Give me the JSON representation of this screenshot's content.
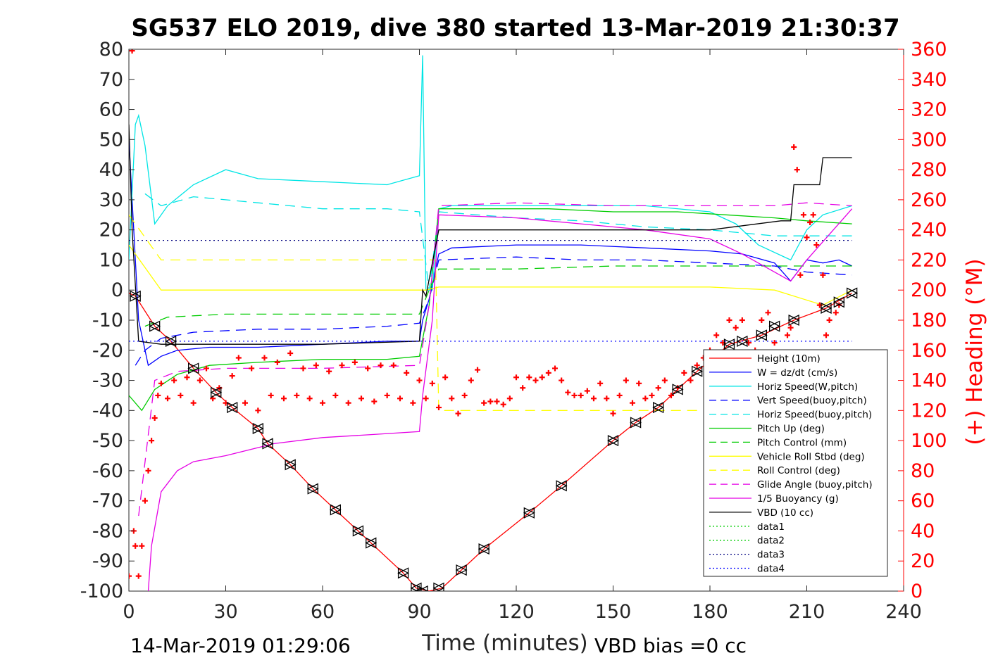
{
  "chart_data": {
    "type": "line",
    "title": "SG537 ELO 2019, dive 380 started 13-Mar-2019 21:30:37",
    "xlabel": "Time (minutes)",
    "ylabel_right": "(+) Heading (°M)",
    "footer_left": "14-Mar-2019 01:29:06",
    "footer_right": "VBD bias =0 cc",
    "xlim": [
      0,
      240
    ],
    "ylim": [
      -100,
      80
    ],
    "ylim_right": [
      0,
      360
    ],
    "x_ticks": [
      "0",
      "30",
      "60",
      "90",
      "120",
      "150",
      "180",
      "210",
      "240"
    ],
    "y_ticks": [
      "80",
      "70",
      "60",
      "50",
      "40",
      "30",
      "20",
      "10",
      "0",
      "-10",
      "-20",
      "-30",
      "-40",
      "-50",
      "-60",
      "-70",
      "-80",
      "-90",
      "-100"
    ],
    "y_ticks_right": [
      "360",
      "340",
      "320",
      "300",
      "280",
      "260",
      "240",
      "220",
      "200",
      "180",
      "160",
      "140",
      "120",
      "100",
      "80",
      "60",
      "40",
      "20",
      "0"
    ],
    "legend_position": "bottom-right",
    "legend": [
      {
        "label": "Height (10m)",
        "color": "#ff0000",
        "dash": "solid"
      },
      {
        "label": "W = dz/dt (cm/s)",
        "color": "#0000ff",
        "dash": "solid"
      },
      {
        "label": "Horiz Speed(W,pitch)",
        "color": "#00e5e5",
        "dash": "solid"
      },
      {
        "label": "Vert Speed(buoy,pitch)",
        "color": "#0000ff",
        "dash": "dashed"
      },
      {
        "label": "Horiz Speed(buoy,pitch)",
        "color": "#00e5e5",
        "dash": "dashed"
      },
      {
        "label": "Pitch Up (deg)",
        "color": "#00cc00",
        "dash": "solid"
      },
      {
        "label": "Pitch Control (mm)",
        "color": "#00cc00",
        "dash": "dashed"
      },
      {
        "label": "Vehicle Roll Stbd (deg)",
        "color": "#ffff00",
        "dash": "solid"
      },
      {
        "label": "Roll Control (deg)",
        "color": "#ffff00",
        "dash": "dashed"
      },
      {
        "label": "Glide Angle (buoy,pitch)",
        "color": "#e500e5",
        "dash": "dashed"
      },
      {
        "label": "1/5 Buoyancy (g)",
        "color": "#e500e5",
        "dash": "solid"
      },
      {
        "label": "VBD (10 cc)",
        "color": "#000000",
        "dash": "solid"
      },
      {
        "label": "data1",
        "color": "#00cc00",
        "dash": "dotted"
      },
      {
        "label": "data2",
        "color": "#00cc00",
        "dash": "dotted"
      },
      {
        "label": "data3",
        "color": "#000080",
        "dash": "dotted"
      },
      {
        "label": "data4",
        "color": "#0000ff",
        "dash": "dotted"
      }
    ],
    "series": [
      {
        "name": "Height (10m)",
        "color": "#ff0000",
        "dash": "solid",
        "x": [
          0,
          2,
          8,
          13,
          20,
          27,
          32,
          40,
          43,
          50,
          57,
          64,
          71,
          75,
          85,
          89,
          93,
          97,
          103,
          110,
          124,
          134,
          150,
          157,
          164,
          170,
          176,
          186,
          196,
          206,
          216,
          224
        ],
        "y": [
          -1,
          -2,
          -12,
          -17,
          -26,
          -34,
          -39,
          -46,
          -51,
          -58,
          -66,
          -73,
          -80,
          -84,
          -94,
          -99,
          -100,
          -99,
          -93,
          -86,
          -74,
          -65,
          -50,
          -44,
          -39,
          -33,
          -27,
          -18,
          -15,
          -10,
          -6,
          -1
        ]
      },
      {
        "name": "W = dz/dt (cm/s)",
        "color": "#0000ff",
        "dash": "solid",
        "x": [
          0,
          3,
          6,
          10,
          15,
          25,
          40,
          60,
          80,
          90,
          91,
          93,
          96,
          100,
          120,
          140,
          160,
          180,
          190,
          200,
          205,
          210,
          215,
          220,
          224
        ],
        "y": [
          50,
          -10,
          -25,
          -22,
          -20,
          -19,
          -19,
          -18,
          -17,
          -17,
          -10,
          -3,
          12,
          14,
          15,
          15,
          14,
          13,
          12,
          9,
          3,
          10,
          9,
          10,
          8
        ]
      },
      {
        "name": "Horiz Speed(W,pitch)",
        "color": "#00e5e5",
        "dash": "solid",
        "x": [
          0,
          2,
          3,
          5,
          8,
          12,
          20,
          30,
          40,
          60,
          80,
          90,
          91,
          92,
          94,
          96,
          100,
          120,
          140,
          160,
          180,
          188,
          195,
          205,
          210,
          215,
          224
        ],
        "y": [
          10,
          55,
          58,
          48,
          22,
          28,
          35,
          40,
          37,
          36,
          35,
          38,
          78,
          0,
          0,
          27,
          28,
          28,
          28,
          28,
          26,
          22,
          15,
          10,
          20,
          25,
          28
        ]
      },
      {
        "name": "Vert Speed(buoy,pitch)",
        "color": "#0000ff",
        "dash": "dashed",
        "x": [
          2,
          5,
          10,
          20,
          40,
          60,
          80,
          90,
          93,
          96,
          120,
          140,
          160,
          180,
          200,
          210,
          224
        ],
        "y": [
          -25,
          -20,
          -16,
          -14,
          -13,
          -13,
          -12,
          -11,
          -3,
          10,
          11,
          10,
          10,
          9,
          8,
          6,
          5
        ]
      },
      {
        "name": "Horiz Speed(buoy,pitch)",
        "color": "#00e5e5",
        "dash": "dashed",
        "x": [
          5,
          10,
          20,
          40,
          60,
          80,
          90,
          93,
          96,
          120,
          140,
          160,
          180,
          200,
          210,
          224
        ],
        "y": [
          32,
          28,
          31,
          29,
          27,
          27,
          26,
          0,
          26,
          24,
          23,
          21,
          20,
          18,
          18,
          18
        ]
      },
      {
        "name": "Pitch Up (deg)",
        "color": "#00cc00",
        "dash": "solid",
        "x": [
          0,
          4,
          8,
          15,
          25,
          40,
          60,
          80,
          90,
          93,
          96,
          110,
          130,
          150,
          170,
          185,
          200,
          210,
          224
        ],
        "y": [
          -35,
          -40,
          -33,
          -28,
          -25,
          -24,
          -23,
          -23,
          -22,
          -5,
          27,
          27,
          27,
          26,
          26,
          25,
          24,
          23,
          22
        ]
      },
      {
        "name": "Pitch Control (mm)",
        "color": "#00cc00",
        "dash": "dashed",
        "x": [
          5,
          12,
          30,
          60,
          90,
          93,
          96,
          120,
          150,
          180,
          210,
          224
        ],
        "y": [
          -12,
          -9,
          -8,
          -8,
          -8,
          0,
          7,
          7,
          8,
          8,
          8,
          8
        ]
      },
      {
        "name": "Vehicle Roll Stbd (deg)",
        "color": "#ffff00",
        "dash": "solid",
        "x": [
          0,
          10,
          30,
          60,
          89,
          92,
          96,
          120,
          150,
          180,
          200,
          215,
          224
        ],
        "y": [
          15,
          0,
          0,
          0,
          0,
          0,
          1,
          1,
          1,
          1,
          0,
          -5,
          0
        ]
      },
      {
        "name": "Roll Control (deg)",
        "color": "#ffff00",
        "dash": "dashed",
        "x": [
          0,
          10,
          60,
          90,
          95,
          96,
          120,
          150,
          180,
          200,
          224
        ],
        "y": [
          25,
          10,
          10,
          10,
          10,
          -40,
          -40,
          -40,
          -40,
          -40,
          -40
        ]
      },
      {
        "name": "Glide Angle (buoy,pitch)",
        "color": "#e500e5",
        "dash": "dashed",
        "x": [
          3,
          8,
          15,
          30,
          60,
          90,
          93,
          96,
          120,
          150,
          180,
          200,
          210,
          224
        ],
        "y": [
          -75,
          -30,
          -27,
          -26,
          -26,
          -25,
          -5,
          28,
          29,
          28,
          28,
          28,
          29,
          28
        ]
      },
      {
        "name": "1/5 Buoyancy (g)",
        "color": "#e500e5",
        "dash": "solid",
        "x": [
          6,
          7,
          10,
          15,
          20,
          30,
          45,
          60,
          75,
          90,
          91,
          94,
          96,
          120,
          140,
          160,
          180,
          190,
          200,
          205,
          210,
          224
        ],
        "y": [
          -100,
          -85,
          -67,
          -60,
          -57,
          -55,
          -51,
          -49,
          -48,
          -47,
          -35,
          -10,
          25,
          24,
          22,
          20,
          17,
          12,
          6,
          3,
          10,
          27
        ]
      },
      {
        "name": "VBD (10 cc)",
        "color": "#000000",
        "dash": "solid",
        "x": [
          0,
          1,
          3,
          10,
          30,
          60,
          90,
          91,
          92,
          96,
          120,
          150,
          180,
          202,
          205,
          206,
          214,
          215,
          224
        ],
        "y": [
          55,
          20,
          -17,
          -18,
          -18,
          -18,
          -17,
          0,
          -2,
          20,
          20,
          20,
          20,
          23,
          23,
          35,
          35,
          44,
          44
        ]
      },
      {
        "name": "data3",
        "color": "#000080",
        "dash": "dotted",
        "x": [
          0,
          224
        ],
        "y": [
          16.5,
          16.5
        ]
      },
      {
        "name": "data4",
        "color": "#0000ff",
        "dash": "dotted",
        "x": [
          0,
          224
        ],
        "y": [
          -17,
          -17
        ]
      }
    ],
    "triangle_markers": {
      "x": [
        2,
        8,
        13,
        20,
        27,
        32,
        40,
        43,
        50,
        57,
        64,
        71,
        75,
        85,
        89,
        91,
        96,
        103,
        110,
        124,
        134,
        150,
        157,
        164,
        170,
        176,
        186,
        190,
        196,
        200,
        206,
        216,
        220,
        224
      ],
      "y": [
        -2,
        -12,
        -17,
        -26,
        -34,
        -39,
        -46,
        -51,
        -58,
        -66,
        -73,
        -80,
        -84,
        -94,
        -99,
        -100,
        -99,
        -93,
        -86,
        -74,
        -65,
        -50,
        -44,
        -39,
        -33,
        -27,
        -18,
        -17,
        -15,
        -12,
        -10,
        -6,
        -4,
        -1
      ]
    },
    "heading": {
      "label": "Heading",
      "color": "#ff0000",
      "marker": "+",
      "x": [
        0,
        1,
        1.5,
        2,
        3,
        4,
        5,
        6,
        7,
        8,
        9,
        10,
        12,
        14,
        16,
        18,
        20,
        22,
        24,
        26,
        28,
        30,
        32,
        34,
        36,
        38,
        40,
        42,
        44,
        46,
        48,
        50,
        52,
        54,
        56,
        58,
        60,
        62,
        64,
        66,
        68,
        70,
        72,
        74,
        76,
        78,
        80,
        82,
        84,
        86,
        88,
        90,
        92,
        94,
        96,
        98,
        100,
        102,
        104,
        106,
        108,
        110,
        112,
        114,
        116,
        118,
        120,
        122,
        124,
        126,
        128,
        130,
        132,
        134,
        136,
        138,
        140,
        142,
        144,
        146,
        148,
        150,
        152,
        154,
        156,
        158,
        160,
        162,
        164,
        166,
        168,
        170,
        172,
        174,
        176,
        178,
        180,
        182,
        184,
        186,
        188,
        190,
        192,
        194,
        196,
        198,
        200,
        202,
        204,
        205,
        206,
        207,
        208,
        209,
        210,
        211,
        212,
        213,
        214,
        215,
        216,
        217,
        218,
        219,
        220
      ],
      "y": [
        10,
        359,
        40,
        30,
        10,
        30,
        60,
        80,
        100,
        115,
        130,
        138,
        128,
        140,
        130,
        142,
        125,
        140,
        148,
        128,
        135,
        125,
        143,
        155,
        125,
        148,
        120,
        155,
        130,
        152,
        128,
        158,
        130,
        148,
        128,
        150,
        125,
        146,
        130,
        150,
        125,
        152,
        128,
        148,
        126,
        150,
        130,
        150,
        128,
        145,
        125,
        140,
        128,
        138,
        122,
        142,
        128,
        118,
        130,
        140,
        147,
        125,
        126,
        126,
        124,
        128,
        142,
        135,
        142,
        140,
        142,
        145,
        148,
        140,
        132,
        130,
        130,
        133,
        128,
        138,
        128,
        118,
        130,
        140,
        125,
        138,
        128,
        130,
        135,
        140,
        130,
        135,
        145,
        140,
        150,
        155,
        160,
        170,
        165,
        180,
        175,
        180,
        165,
        160,
        180,
        185,
        165,
        150,
        170,
        175,
        295,
        280,
        210,
        250,
        235,
        245,
        250,
        230,
        190,
        210,
        170,
        180,
        150,
        185,
        190
      ]
    }
  }
}
